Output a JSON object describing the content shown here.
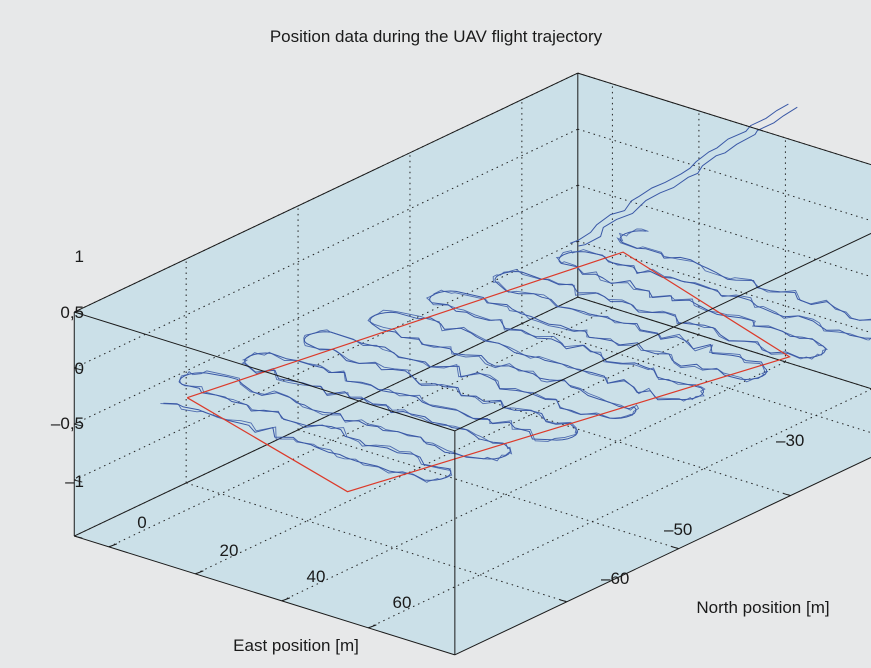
{
  "chart_data": {
    "type": "line",
    "projection": "3d",
    "title": "Position data during the UAV flight trajectory",
    "xlabel": "East position [m]",
    "ylabel": "North position [m]",
    "zlabel": "",
    "x_ticks": [
      "0",
      "20",
      "40",
      "60"
    ],
    "y_ticks": [
      "–30",
      "–50",
      "–60"
    ],
    "z_ticks": [
      "1",
      "0,5",
      "0",
      "–0,5",
      "–1"
    ],
    "xlim": [
      -8,
      80
    ],
    "ylim": [
      -70,
      -25
    ],
    "zlim": [
      -1,
      1
    ],
    "grid": true,
    "colors": {
      "background": "#e7e8e9",
      "box_fill": "#cbe0e8",
      "flight_path": "#3a58a6",
      "reference_path": "#dc3a2a",
      "axes": "#1a1a1a"
    },
    "series": [
      {
        "name": "",
        "role": "flight path",
        "color": "#3a58a6",
        "pattern": "lawnmower",
        "x_range": [
          -2,
          75
        ],
        "y_range": [
          -64,
          -30
        ],
        "z": 0,
        "laps": 16,
        "takeoff_leg": {
          "x": [
            18,
            40
          ],
          "y": [
            -36,
            -25
          ]
        }
      },
      {
        "name": "",
        "role": "reference rectangle",
        "color": "#dc3a2a",
        "x": [
          0,
          18,
          72,
          50,
          0
        ],
        "y": [
          -63,
          -31,
          -37,
          -68,
          -63
        ],
        "z": [
          0,
          0,
          0,
          0,
          0
        ]
      }
    ]
  }
}
